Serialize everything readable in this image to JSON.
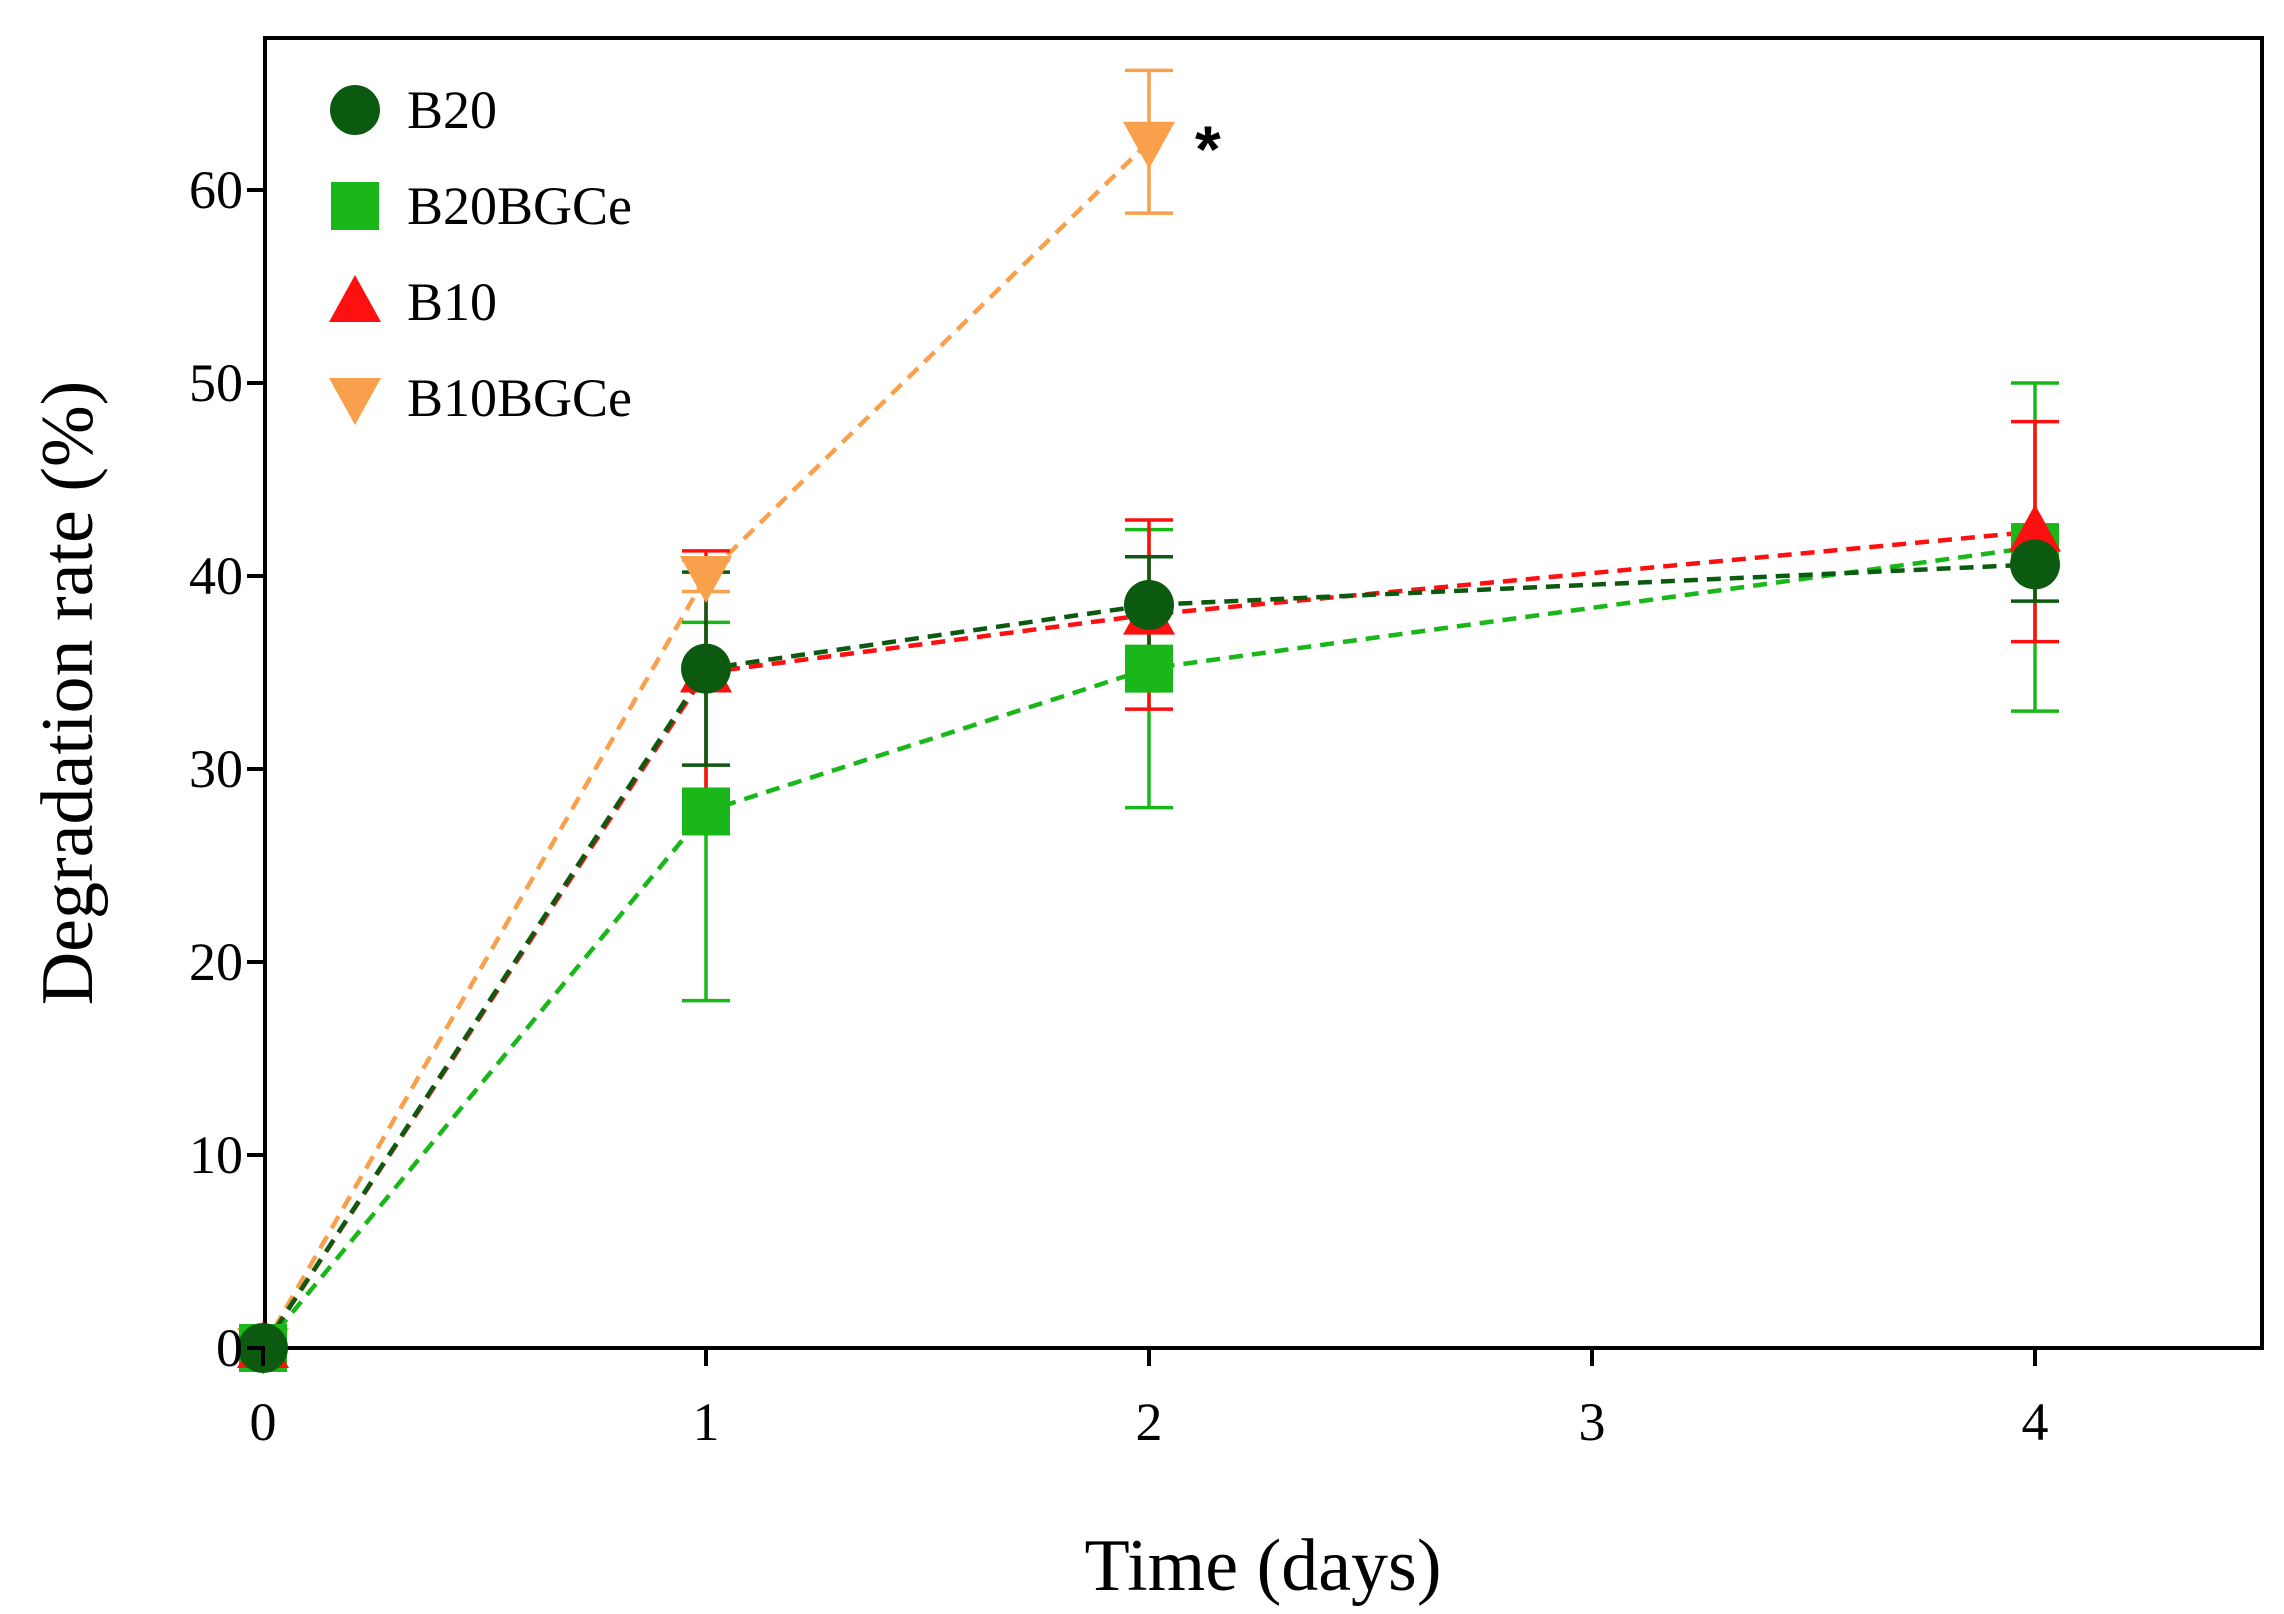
{
  "chart_data": {
    "type": "line",
    "title": "",
    "xlabel": "Time (days)",
    "ylabel": "Degradation rate (%)",
    "xlim": [
      0,
      4.5
    ],
    "ylim": [
      0,
      67
    ],
    "x_ticks": [
      0,
      1,
      2,
      3,
      4
    ],
    "y_ticks": [
      0,
      10,
      20,
      30,
      40,
      50,
      60
    ],
    "legend_position": "top-left",
    "annotation": "*",
    "series": [
      {
        "name": "B20",
        "marker": "circle",
        "color": "#0b5a10",
        "x": [
          0,
          1,
          2,
          4
        ],
        "y": [
          0,
          35.2,
          38.5,
          40.6
        ],
        "err": [
          0,
          5.0,
          2.5,
          1.9
        ]
      },
      {
        "name": "B20BGCe",
        "marker": "square",
        "color": "#19b719",
        "x": [
          0,
          1,
          2,
          4
        ],
        "y": [
          0,
          27.8,
          35.2,
          41.5
        ],
        "err": [
          0,
          9.8,
          7.2,
          8.5
        ]
      },
      {
        "name": "B10",
        "marker": "triangle-up",
        "color": "#ff1010",
        "x": [
          0,
          1,
          2,
          4
        ],
        "y": [
          0,
          35.0,
          38.0,
          42.3
        ],
        "err": [
          0,
          6.3,
          4.9,
          5.7
        ]
      },
      {
        "name": "B10BGCe",
        "marker": "triangle-down",
        "color": "#f8a04c",
        "x": [
          0,
          1,
          2
        ],
        "y": [
          0,
          40.0,
          62.5
        ],
        "err": [
          0,
          0.8,
          3.7
        ]
      }
    ]
  }
}
